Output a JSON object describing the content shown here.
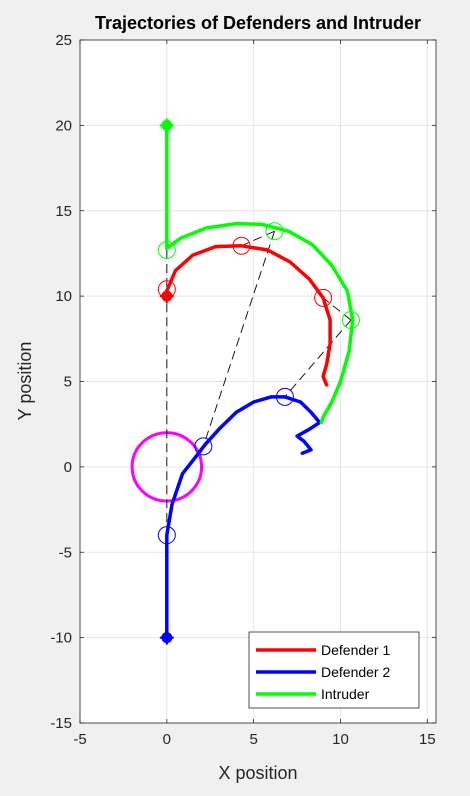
{
  "chart_data": {
    "type": "line",
    "title": "Trajectories of Defenders and Intruder",
    "xlabel": "X position",
    "ylabel": "Y position",
    "xlim": [
      -5,
      15.5
    ],
    "ylim": [
      -15,
      25
    ],
    "xticks": [
      -5,
      0,
      5,
      10,
      15
    ],
    "yticks": [
      -15,
      -10,
      -5,
      0,
      5,
      10,
      15,
      20,
      25
    ],
    "grid": true,
    "legend_position": "bottom-right",
    "target_zone": {
      "center": [
        0,
        0
      ],
      "radius": 2,
      "color": "#ff00ff"
    },
    "series": [
      {
        "name": "Defender 1",
        "color": "#ff0000",
        "points": [
          [
            0,
            10
          ],
          [
            0,
            10.3
          ],
          [
            0.5,
            11.5
          ],
          [
            1.5,
            12.4
          ],
          [
            2.8,
            12.9
          ],
          [
            4.3,
            12.95
          ],
          [
            5.8,
            12.7
          ],
          [
            7.1,
            12
          ],
          [
            8.2,
            11
          ],
          [
            9,
            9.9
          ],
          [
            9.4,
            8.6
          ],
          [
            9.4,
            7.2
          ],
          [
            9.2,
            6
          ],
          [
            9,
            5.3
          ],
          [
            9.2,
            4.8
          ]
        ],
        "markers": [
          [
            0,
            10.4
          ],
          [
            4.3,
            12.95
          ],
          [
            9,
            9.9
          ]
        ]
      },
      {
        "name": "Defender 2",
        "color": "#0000ff",
        "points": [
          [
            0,
            -10
          ],
          [
            0,
            -7
          ],
          [
            0,
            -4
          ],
          [
            0.3,
            -2.2
          ],
          [
            0.9,
            -0.4
          ],
          [
            1.6,
            0.5
          ],
          [
            2.2,
            1.3
          ],
          [
            3,
            2.2
          ],
          [
            4,
            3.2
          ],
          [
            5,
            3.8
          ],
          [
            6,
            4.1
          ],
          [
            6.8,
            4.1
          ],
          [
            7.7,
            3.8
          ],
          [
            8.3,
            3.2
          ],
          [
            8.8,
            2.6
          ],
          [
            8.2,
            2.2
          ],
          [
            7.5,
            1.8
          ],
          [
            7.9,
            1.5
          ],
          [
            8.3,
            1
          ],
          [
            7.8,
            0.8
          ]
        ],
        "markers": [
          [
            0,
            -4
          ],
          [
            2.1,
            1.2
          ],
          [
            6.8,
            4.1
          ]
        ]
      },
      {
        "name": "Intruder",
        "color": "#00ff00",
        "points": [
          [
            0,
            20
          ],
          [
            0,
            17
          ],
          [
            0,
            14
          ],
          [
            0,
            12.8
          ],
          [
            0.8,
            13.4
          ],
          [
            2.3,
            14
          ],
          [
            4,
            14.25
          ],
          [
            5.5,
            14.2
          ],
          [
            7,
            13.8
          ],
          [
            8.4,
            13
          ],
          [
            9.5,
            11.8
          ],
          [
            10.4,
            10.3
          ],
          [
            10.7,
            8.6
          ],
          [
            10.5,
            6.8
          ],
          [
            10,
            5
          ],
          [
            9.5,
            3.8
          ],
          [
            9,
            2.9
          ],
          [
            8.9,
            2.6
          ]
        ],
        "markers": [
          [
            0,
            12.7
          ],
          [
            6.2,
            13.8
          ],
          [
            10.6,
            8.6
          ]
        ]
      }
    ],
    "start_marker_points": [
      [
        0,
        10
      ],
      [
        0,
        -10
      ],
      [
        0,
        20
      ]
    ],
    "connectors": [
      [
        [
          0,
          12.7
        ],
        [
          0,
          10.4
        ]
      ],
      [
        [
          0,
          10.4
        ],
        [
          0,
          -4
        ]
      ],
      [
        [
          6.2,
          13.8
        ],
        [
          4.3,
          12.95
        ]
      ],
      [
        [
          6.2,
          13.8
        ],
        [
          2.1,
          1.2
        ]
      ],
      [
        [
          10.6,
          8.6
        ],
        [
          9,
          9.9
        ]
      ],
      [
        [
          10.6,
          8.6
        ],
        [
          6.8,
          4.1
        ]
      ]
    ]
  }
}
